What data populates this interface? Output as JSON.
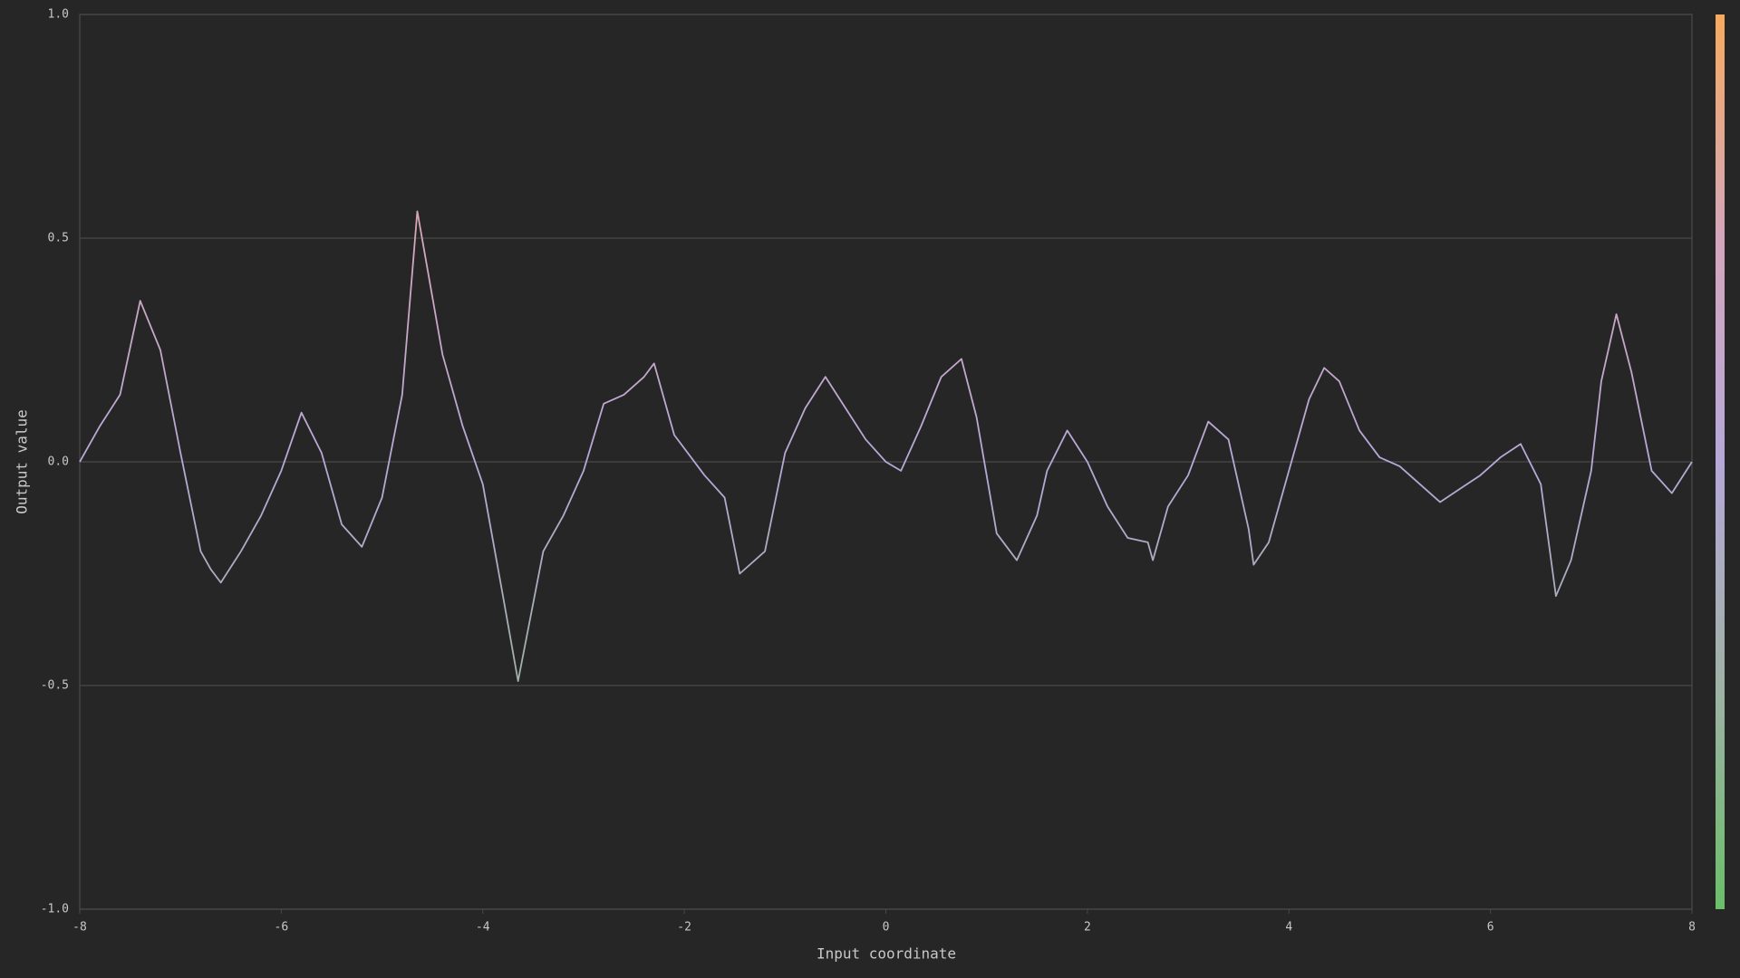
{
  "chart_data": {
    "type": "line",
    "xlabel": "Input coordinate",
    "ylabel": "Output value",
    "x": [
      -8,
      -7.8,
      -7.6,
      -7.4,
      -7.2,
      -7.0,
      -6.8,
      -6.7,
      -6.6,
      -6.4,
      -6.2,
      -6.0,
      -5.8,
      -5.6,
      -5.4,
      -5.2,
      -5.0,
      -4.8,
      -4.65,
      -4.4,
      -4.2,
      -4.0,
      -3.8,
      -3.65,
      -3.4,
      -3.2,
      -3.0,
      -2.8,
      -2.6,
      -2.4,
      -2.3,
      -2.1,
      -1.8,
      -1.6,
      -1.45,
      -1.2,
      -1.0,
      -0.8,
      -0.6,
      -0.4,
      -0.2,
      0.0,
      0.15,
      0.35,
      0.55,
      0.75,
      0.9,
      1.1,
      1.3,
      1.5,
      1.6,
      1.8,
      2.0,
      2.2,
      2.4,
      2.6,
      2.65,
      2.8,
      3.0,
      3.2,
      3.4,
      3.6,
      3.65,
      3.8,
      4.0,
      4.2,
      4.35,
      4.5,
      4.7,
      4.9,
      5.1,
      5.3,
      5.5,
      5.7,
      5.9,
      6.1,
      6.3,
      6.5,
      6.65,
      6.8,
      7.0,
      7.1,
      7.25,
      7.4,
      7.6,
      7.8,
      8.0
    ],
    "values": [
      0.0,
      0.08,
      0.15,
      0.36,
      0.25,
      0.02,
      -0.2,
      -0.24,
      -0.27,
      -0.2,
      -0.12,
      -0.02,
      0.11,
      0.02,
      -0.14,
      -0.19,
      -0.08,
      0.15,
      0.56,
      0.24,
      0.08,
      -0.05,
      -0.3,
      -0.49,
      -0.2,
      -0.12,
      -0.02,
      0.13,
      0.15,
      0.19,
      0.22,
      0.06,
      -0.03,
      -0.08,
      -0.25,
      -0.2,
      0.02,
      0.12,
      0.19,
      0.12,
      0.05,
      0.0,
      -0.02,
      0.08,
      0.19,
      0.23,
      0.1,
      -0.16,
      -0.22,
      -0.12,
      -0.02,
      0.07,
      0.0,
      -0.1,
      -0.17,
      -0.18,
      -0.22,
      -0.1,
      -0.03,
      0.09,
      0.05,
      -0.15,
      -0.23,
      -0.18,
      -0.02,
      0.14,
      0.21,
      0.18,
      0.07,
      0.01,
      -0.01,
      -0.05,
      -0.09,
      -0.06,
      -0.03,
      0.01,
      0.04,
      -0.05,
      -0.3,
      -0.22,
      -0.02,
      0.18,
      0.33,
      0.2,
      -0.02,
      -0.07,
      0.0
    ],
    "colormap": [
      "#6abf69",
      "#9fb1a6",
      "#b6a8d8",
      "#d4a6bc",
      "#f7aa5e"
    ],
    "xlim": [
      -8,
      8
    ],
    "ylim": [
      -1,
      1
    ],
    "xticks": [
      -8,
      -6,
      -4,
      -2,
      0,
      2,
      4,
      6,
      8
    ],
    "yticks": [
      {
        "value": -1,
        "label": "-1.0"
      },
      -0.5,
      {
        "value": 0,
        "label": "0.0"
      },
      0.5,
      {
        "value": 1,
        "label": "1.0"
      }
    ],
    "grid": true
  }
}
